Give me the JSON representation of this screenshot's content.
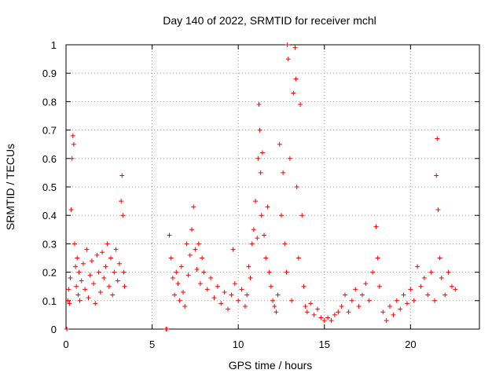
{
  "chart_data": {
    "type": "scatter",
    "title": "Day 140 of 2022, SRMTID for receiver mchl",
    "xlabel": "GPS time / hours",
    "ylabel": "SRMTID / TECUs",
    "xlim": [
      0,
      24
    ],
    "ylim": [
      0,
      1
    ],
    "xticks": [
      0,
      5,
      10,
      15,
      20
    ],
    "xtick_labels": [
      "0",
      "5",
      "10",
      "15",
      "20"
    ],
    "yticks": [
      0,
      0.1,
      0.2,
      0.3,
      0.4,
      0.5,
      0.6,
      0.7,
      0.8,
      0.9,
      1
    ],
    "ytick_labels": [
      "0",
      "0.1",
      "0.2",
      "0.3",
      "0.4",
      "0.5",
      "0.6",
      "0.7",
      "0.8",
      "0.9",
      "1"
    ],
    "grid": true,
    "marker": "+",
    "color": "#ff0000",
    "series": [
      {
        "name": "SRMTID",
        "points": [
          [
            0.05,
            0.0
          ],
          [
            0.1,
            0.1
          ],
          [
            0.15,
            0.14
          ],
          [
            0.2,
            0.09
          ],
          [
            0.25,
            0.18
          ],
          [
            0.3,
            0.42
          ],
          [
            0.35,
            0.6
          ],
          [
            0.4,
            0.68
          ],
          [
            0.45,
            0.65
          ],
          [
            0.5,
            0.3
          ],
          [
            0.55,
            0.22
          ],
          [
            0.6,
            0.15
          ],
          [
            0.65,
            0.25
          ],
          [
            0.7,
            0.12
          ],
          [
            0.75,
            0.2
          ],
          [
            0.8,
            0.1
          ],
          [
            0.9,
            0.17
          ],
          [
            1.0,
            0.23
          ],
          [
            1.1,
            0.14
          ],
          [
            1.2,
            0.28
          ],
          [
            1.3,
            0.11
          ],
          [
            1.4,
            0.19
          ],
          [
            1.5,
            0.24
          ],
          [
            1.6,
            0.16
          ],
          [
            1.7,
            0.09
          ],
          [
            1.8,
            0.26
          ],
          [
            1.9,
            0.2
          ],
          [
            2.0,
            0.13
          ],
          [
            2.1,
            0.27
          ],
          [
            2.2,
            0.18
          ],
          [
            2.3,
            0.22
          ],
          [
            2.4,
            0.3
          ],
          [
            2.5,
            0.15
          ],
          [
            2.6,
            0.25
          ],
          [
            2.7,
            0.12
          ],
          [
            2.8,
            0.2
          ],
          [
            2.9,
            0.28
          ],
          [
            3.0,
            0.17
          ],
          [
            3.1,
            0.23
          ],
          [
            3.2,
            0.45
          ],
          [
            3.25,
            0.54
          ],
          [
            3.3,
            0.4
          ],
          [
            3.35,
            0.2
          ],
          [
            3.4,
            0.15
          ],
          [
            5.8,
            0.0
          ],
          [
            5.85,
            0.0
          ],
          [
            6.0,
            0.33
          ],
          [
            6.1,
            0.25
          ],
          [
            6.2,
            0.18
          ],
          [
            6.3,
            0.12
          ],
          [
            6.4,
            0.2
          ],
          [
            6.5,
            0.16
          ],
          [
            6.6,
            0.1
          ],
          [
            6.7,
            0.22
          ],
          [
            6.8,
            0.13
          ],
          [
            6.9,
            0.08
          ],
          [
            7.0,
            0.3
          ],
          [
            7.1,
            0.19
          ],
          [
            7.2,
            0.26
          ],
          [
            7.3,
            0.35
          ],
          [
            7.4,
            0.43
          ],
          [
            7.5,
            0.28
          ],
          [
            7.6,
            0.21
          ],
          [
            7.7,
            0.3
          ],
          [
            7.8,
            0.16
          ],
          [
            7.9,
            0.25
          ],
          [
            8.0,
            0.2
          ],
          [
            8.2,
            0.14
          ],
          [
            8.4,
            0.18
          ],
          [
            8.6,
            0.11
          ],
          [
            8.8,
            0.15
          ],
          [
            9.0,
            0.09
          ],
          [
            9.2,
            0.13
          ],
          [
            9.4,
            0.07
          ],
          [
            9.6,
            0.12
          ],
          [
            9.7,
            0.28
          ],
          [
            9.8,
            0.16
          ],
          [
            10.0,
            0.1
          ],
          [
            10.2,
            0.14
          ],
          [
            10.4,
            0.08
          ],
          [
            10.5,
            0.12
          ],
          [
            10.6,
            0.22
          ],
          [
            10.7,
            0.18
          ],
          [
            10.8,
            0.3
          ],
          [
            10.9,
            0.35
          ],
          [
            11.0,
            0.45
          ],
          [
            11.1,
            0.32
          ],
          [
            11.15,
            0.6
          ],
          [
            11.2,
            0.79
          ],
          [
            11.25,
            0.7
          ],
          [
            11.3,
            0.55
          ],
          [
            11.35,
            0.4
          ],
          [
            11.4,
            0.62
          ],
          [
            11.5,
            0.33
          ],
          [
            11.6,
            0.25
          ],
          [
            11.7,
            0.43
          ],
          [
            11.8,
            0.2
          ],
          [
            11.9,
            0.15
          ],
          [
            12.0,
            0.1
          ],
          [
            12.1,
            0.08
          ],
          [
            12.2,
            0.06
          ],
          [
            12.3,
            0.12
          ],
          [
            12.4,
            0.65
          ],
          [
            12.5,
            0.4
          ],
          [
            12.6,
            0.55
          ],
          [
            12.7,
            0.3
          ],
          [
            12.8,
            0.2
          ],
          [
            12.85,
            1.0
          ],
          [
            12.9,
            0.95
          ],
          [
            13.0,
            0.6
          ],
          [
            13.1,
            0.1
          ],
          [
            13.2,
            0.83
          ],
          [
            13.3,
            0.99
          ],
          [
            13.35,
            0.88
          ],
          [
            13.4,
            0.5
          ],
          [
            13.5,
            0.25
          ],
          [
            13.6,
            0.79
          ],
          [
            13.7,
            0.4
          ],
          [
            13.8,
            0.15
          ],
          [
            13.9,
            0.08
          ],
          [
            14.0,
            0.06
          ],
          [
            14.2,
            0.09
          ],
          [
            14.4,
            0.05
          ],
          [
            14.6,
            0.07
          ],
          [
            14.8,
            0.04
          ],
          [
            15.0,
            0.03
          ],
          [
            15.2,
            0.04
          ],
          [
            15.4,
            0.03
          ],
          [
            15.6,
            0.05
          ],
          [
            15.8,
            0.06
          ],
          [
            16.0,
            0.08
          ],
          [
            16.2,
            0.12
          ],
          [
            16.4,
            0.06
          ],
          [
            16.6,
            0.1
          ],
          [
            16.8,
            0.14
          ],
          [
            17.0,
            0.08
          ],
          [
            17.2,
            0.12
          ],
          [
            17.4,
            0.16
          ],
          [
            17.6,
            0.1
          ],
          [
            17.8,
            0.2
          ],
          [
            18.0,
            0.36
          ],
          [
            18.1,
            0.25
          ],
          [
            18.2,
            0.15
          ],
          [
            18.4,
            0.06
          ],
          [
            18.6,
            0.03
          ],
          [
            18.8,
            0.08
          ],
          [
            19.0,
            0.05
          ],
          [
            19.2,
            0.1
          ],
          [
            19.4,
            0.07
          ],
          [
            19.6,
            0.12
          ],
          [
            19.8,
            0.09
          ],
          [
            20.0,
            0.14
          ],
          [
            20.2,
            0.1
          ],
          [
            20.4,
            0.22
          ],
          [
            20.6,
            0.15
          ],
          [
            20.8,
            0.18
          ],
          [
            21.0,
            0.12
          ],
          [
            21.2,
            0.2
          ],
          [
            21.4,
            0.1
          ],
          [
            21.5,
            0.54
          ],
          [
            21.55,
            0.67
          ],
          [
            21.6,
            0.42
          ],
          [
            21.7,
            0.25
          ],
          [
            21.8,
            0.18
          ],
          [
            22.0,
            0.12
          ],
          [
            22.2,
            0.2
          ],
          [
            22.4,
            0.15
          ],
          [
            22.6,
            0.14
          ]
        ]
      }
    ]
  }
}
